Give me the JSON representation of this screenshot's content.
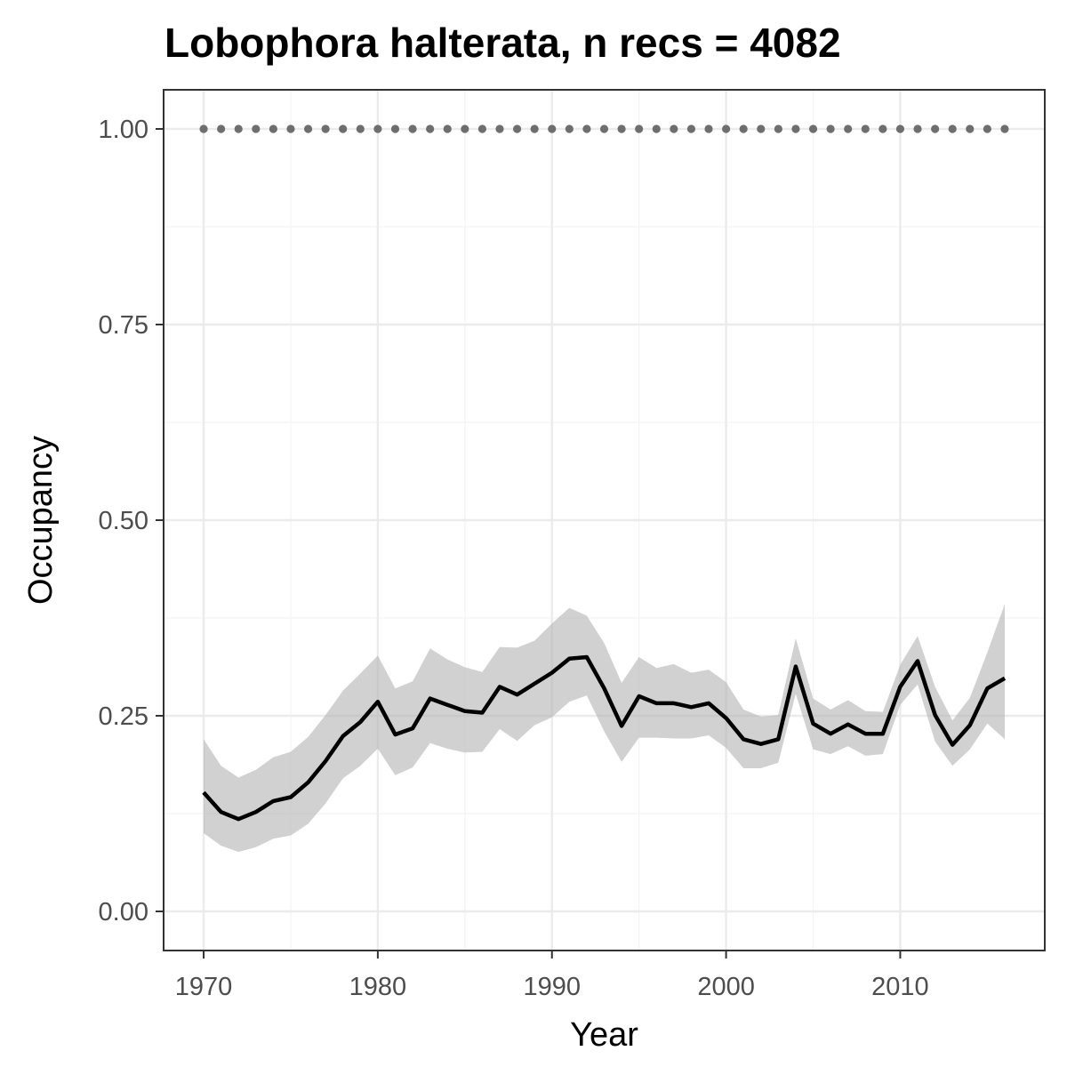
{
  "chart_data": {
    "type": "line",
    "title": "Lobophora halterata, n recs = 4082",
    "xlabel": "Year",
    "ylabel": "Occupancy",
    "xlim": [
      1967.7,
      2018.3
    ],
    "ylim": [
      -0.05,
      1.05
    ],
    "x_ticks": [
      1970,
      1980,
      1990,
      2000,
      2010
    ],
    "x_tick_labels": [
      "1970",
      "1980",
      "1990",
      "2000",
      "2010"
    ],
    "y_ticks": [
      0.0,
      0.25,
      0.5,
      0.75,
      1.0
    ],
    "y_tick_labels": [
      "0.00",
      "0.25",
      "0.50",
      "0.75",
      "1.00"
    ],
    "grid": true,
    "colors": {
      "line": "#000000",
      "band": "#b3b3b3",
      "dots": "#6e6e6e",
      "grid_major": "#ebebeb",
      "grid_minor": "#f4f4f4",
      "panel_border": "#333333",
      "tick_label": "#4d4d4d"
    },
    "series": [
      {
        "type": "line",
        "x": [
          1970,
          1971,
          1972,
          1973,
          1974,
          1975,
          1976,
          1977,
          1978,
          1979,
          1980,
          1981,
          1982,
          1983,
          1984,
          1985,
          1986,
          1987,
          1988,
          1989,
          1990,
          1991,
          1992,
          1993,
          1994,
          1995,
          1996,
          1997,
          1998,
          1999,
          2000,
          2001,
          2002,
          2003,
          2004,
          2005,
          2006,
          2007,
          2008,
          2009,
          2010,
          2011,
          2012,
          2013,
          2014,
          2015,
          2016
        ],
        "y": [
          0.152,
          0.127,
          0.118,
          0.127,
          0.141,
          0.146,
          0.165,
          0.192,
          0.224,
          0.242,
          0.268,
          0.226,
          0.234,
          0.272,
          0.264,
          0.256,
          0.254,
          0.287,
          0.277,
          0.291,
          0.305,
          0.323,
          0.325,
          0.285,
          0.237,
          0.275,
          0.266,
          0.266,
          0.261,
          0.266,
          0.247,
          0.22,
          0.214,
          0.22,
          0.313,
          0.24,
          0.227,
          0.239,
          0.227,
          0.227,
          0.287,
          0.32,
          0.251,
          0.213,
          0.238,
          0.285,
          0.298
        ],
        "lower": [
          0.1,
          0.084,
          0.076,
          0.082,
          0.093,
          0.097,
          0.112,
          0.138,
          0.17,
          0.186,
          0.208,
          0.174,
          0.184,
          0.215,
          0.208,
          0.203,
          0.204,
          0.233,
          0.218,
          0.238,
          0.248,
          0.268,
          0.276,
          0.23,
          0.191,
          0.222,
          0.222,
          0.221,
          0.221,
          0.225,
          0.209,
          0.183,
          0.183,
          0.19,
          0.278,
          0.207,
          0.201,
          0.211,
          0.199,
          0.201,
          0.264,
          0.29,
          0.217,
          0.186,
          0.207,
          0.24,
          0.22
        ],
        "upper": [
          0.22,
          0.186,
          0.171,
          0.181,
          0.197,
          0.204,
          0.223,
          0.251,
          0.282,
          0.304,
          0.327,
          0.285,
          0.294,
          0.336,
          0.322,
          0.312,
          0.306,
          0.338,
          0.337,
          0.346,
          0.368,
          0.388,
          0.378,
          0.343,
          0.292,
          0.325,
          0.311,
          0.316,
          0.305,
          0.309,
          0.293,
          0.258,
          0.249,
          0.251,
          0.349,
          0.272,
          0.258,
          0.27,
          0.256,
          0.255,
          0.315,
          0.352,
          0.287,
          0.244,
          0.273,
          0.331,
          0.393
        ]
      },
      {
        "type": "dots",
        "x": [
          1970,
          1971,
          1972,
          1973,
          1974,
          1975,
          1976,
          1977,
          1978,
          1979,
          1980,
          1981,
          1982,
          1983,
          1984,
          1985,
          1986,
          1987,
          1988,
          1989,
          1990,
          1991,
          1992,
          1993,
          1994,
          1995,
          1996,
          1997,
          1998,
          1999,
          2000,
          2001,
          2002,
          2003,
          2004,
          2005,
          2006,
          2007,
          2008,
          2009,
          2010,
          2011,
          2012,
          2013,
          2014,
          2015,
          2016
        ],
        "y": 1.0
      }
    ]
  }
}
